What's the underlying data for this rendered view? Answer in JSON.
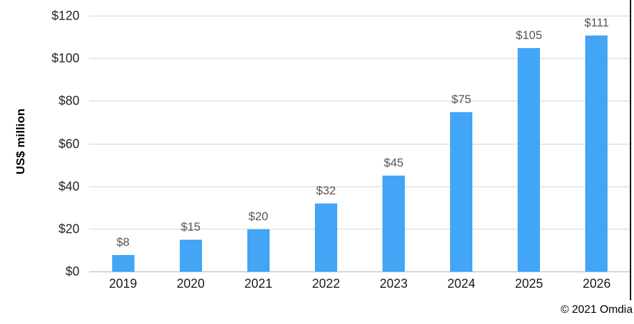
{
  "chart_data": {
    "type": "bar",
    "categories": [
      "2019",
      "2020",
      "2021",
      "2022",
      "2023",
      "2024",
      "2025",
      "2026"
    ],
    "values": [
      8,
      15,
      20,
      32,
      45,
      75,
      105,
      111
    ],
    "data_labels": [
      "$8",
      "$15",
      "$20",
      "$32",
      "$45",
      "$75",
      "$105",
      "$111"
    ],
    "title": "",
    "xlabel": "",
    "ylabel": "US$ million",
    "ylim": [
      0,
      120
    ],
    "y_ticks": [
      "$120",
      "$100",
      "$80",
      "$60",
      "$40",
      "$20",
      "$0"
    ],
    "grid": "horizontal",
    "legend": "none",
    "bar_color": "#42A5F5",
    "gridline_color": "#E8E8E8",
    "baseline_color": "#D6D6D6",
    "tick_label_color": "#262626",
    "data_label_color": "#555555"
  },
  "footer": {
    "copyright": "© 2021 Omdia"
  }
}
